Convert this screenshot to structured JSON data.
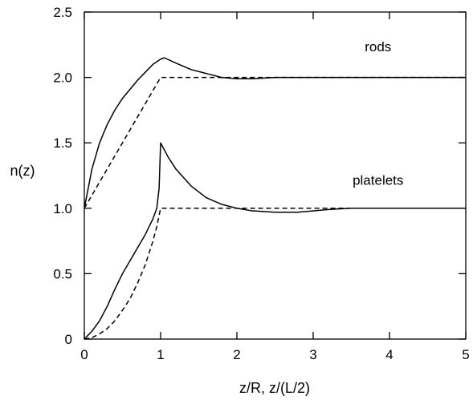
{
  "chart_data": {
    "type": "line",
    "title": "",
    "xlabel": "z/R,  z/(L/2)",
    "ylabel": "n(z)",
    "xlim": [
      0,
      5
    ],
    "ylim": [
      0,
      2.5
    ],
    "grid": false,
    "x_ticks": [
      0,
      1,
      2,
      3,
      4,
      5
    ],
    "x_tick_labels": [
      "0",
      "1",
      "2",
      "3",
      "4",
      "5"
    ],
    "y_ticks": [
      0,
      0.5,
      1.0,
      1.5,
      2.0,
      2.5
    ],
    "y_tick_labels": [
      "0",
      "0.5",
      "1.0",
      "1.5",
      "2.0",
      "2.5"
    ],
    "annotations": [
      {
        "text": "rods",
        "x": 3.85,
        "y": 2.2
      },
      {
        "text": "platelets",
        "x": 3.85,
        "y": 1.18
      }
    ],
    "series": [
      {
        "style": "solid",
        "x": [
          0,
          0.1,
          0.2,
          0.3,
          0.4,
          0.5,
          0.6,
          0.7,
          0.8,
          0.9,
          1.0,
          1.05,
          1.2,
          1.4,
          1.6,
          1.8,
          2.0,
          2.2,
          2.5,
          3.0,
          4.0,
          5.0
        ],
        "y": [
          1.0,
          1.3,
          1.5,
          1.64,
          1.75,
          1.84,
          1.91,
          1.98,
          2.04,
          2.1,
          2.14,
          2.15,
          2.11,
          2.06,
          2.03,
          2.0,
          1.99,
          1.99,
          2.0,
          2.0,
          2.0,
          2.0
        ]
      },
      {
        "style": "dashed",
        "x": [
          0,
          1.0,
          5.0
        ],
        "y": [
          1.0,
          2.0,
          2.0
        ]
      },
      {
        "style": "solid",
        "x": [
          0,
          0.1,
          0.2,
          0.3,
          0.4,
          0.5,
          0.6,
          0.7,
          0.8,
          0.9,
          0.95,
          0.98,
          1.0,
          1.1,
          1.2,
          1.4,
          1.6,
          1.8,
          2.0,
          2.2,
          2.5,
          2.8,
          3.2,
          3.5,
          4.0,
          5.0
        ],
        "y": [
          0,
          0.06,
          0.14,
          0.25,
          0.38,
          0.5,
          0.6,
          0.7,
          0.8,
          0.92,
          1.0,
          1.15,
          1.5,
          1.39,
          1.3,
          1.17,
          1.08,
          1.03,
          1.0,
          0.98,
          0.97,
          0.97,
          0.99,
          1.0,
          1.0,
          1.0
        ]
      },
      {
        "style": "dashed",
        "x": [
          0,
          0.1,
          0.2,
          0.3,
          0.4,
          0.5,
          0.6,
          0.7,
          0.8,
          0.9,
          0.95,
          1.0,
          5.0
        ],
        "y": [
          0,
          0.01,
          0.04,
          0.08,
          0.14,
          0.22,
          0.31,
          0.43,
          0.57,
          0.75,
          0.86,
          1.0,
          1.0
        ]
      }
    ]
  }
}
